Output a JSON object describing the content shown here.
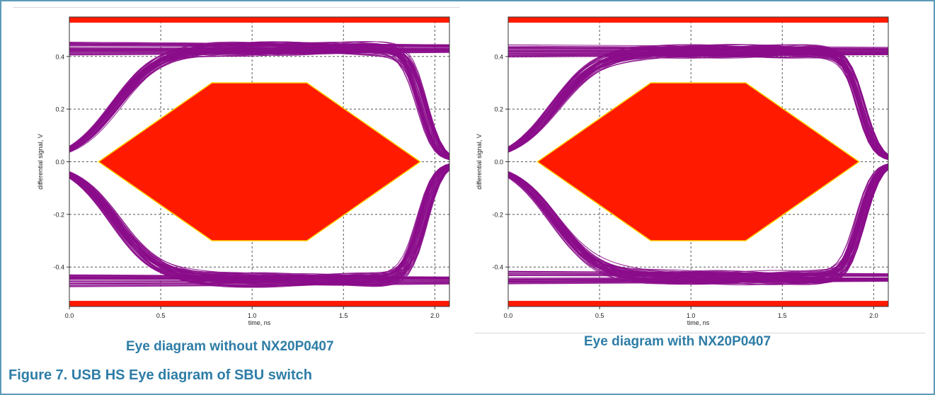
{
  "figure_title": "Figure 7.  USB HS Eye diagram of SBU switch",
  "chart_data": [
    {
      "type": "eye-diagram",
      "caption": "Eye diagram without NX20P0407",
      "xlabel": "time, ns",
      "ylabel": "differential signal, V",
      "xlim": [
        0,
        2.08
      ],
      "ylim": [
        -0.55,
        0.55
      ],
      "x_ticks": [
        "0.0",
        "0.5",
        "1.0",
        "1.5",
        "2.0"
      ],
      "y_ticks": [
        "0.4",
        "0.2",
        "0.0",
        "-0.2",
        "-0.4"
      ],
      "grid": true,
      "mask_color": "#ff1a00",
      "trace_color": "#8b0d8b",
      "eye_mask": [
        [
          0.16,
          0.0
        ],
        [
          0.78,
          0.3
        ],
        [
          1.3,
          0.3
        ],
        [
          1.92,
          0.0
        ],
        [
          1.3,
          -0.3
        ],
        [
          0.78,
          -0.3
        ]
      ],
      "limit_bars_V": [
        0.54,
        -0.54
      ],
      "signal_levels_V": [
        0.43,
        -0.45
      ]
    },
    {
      "type": "eye-diagram",
      "caption": "Eye diagram with NX20P0407",
      "xlabel": "time, ns",
      "ylabel": "differential signal, V",
      "xlim": [
        0,
        2.08
      ],
      "ylim": [
        -0.55,
        0.55
      ],
      "x_ticks": [
        "0.0",
        "0.5",
        "1.0",
        "1.5",
        "2.0"
      ],
      "y_ticks": [
        "0.4",
        "0.2",
        "0.0",
        "-0.2",
        "-0.4"
      ],
      "grid": true,
      "mask_color": "#ff1a00",
      "trace_color": "#8b0d8b",
      "eye_mask": [
        [
          0.16,
          0.0
        ],
        [
          0.78,
          0.3
        ],
        [
          1.3,
          0.3
        ],
        [
          1.92,
          0.0
        ],
        [
          1.3,
          -0.3
        ],
        [
          0.78,
          -0.3
        ]
      ],
      "limit_bars_V": [
        0.54,
        -0.54
      ],
      "signal_levels_V": [
        0.42,
        -0.44
      ]
    }
  ]
}
